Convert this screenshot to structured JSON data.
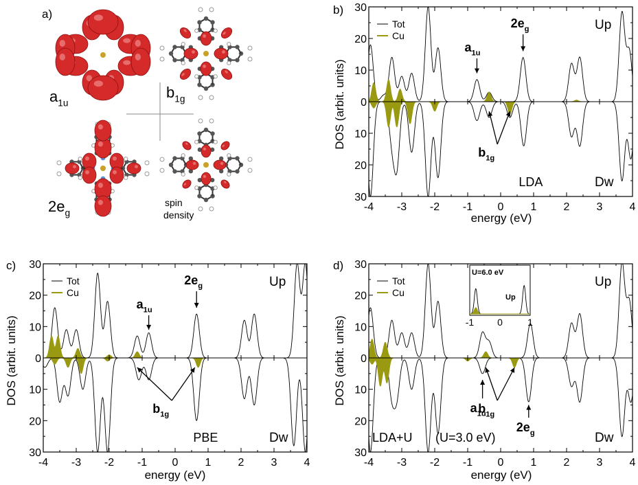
{
  "figure": {
    "panel_a": {
      "label": "a)",
      "orbitals": [
        {
          "main": "a",
          "sub": "1u"
        },
        {
          "main": "b",
          "sub": "1g"
        },
        {
          "main": "2e",
          "sub": "g"
        },
        {
          "main": "spin",
          "sub": "density"
        }
      ]
    }
  },
  "chart_data": [
    {
      "panel": "b)",
      "type": "line",
      "xlabel": "energy (eV)",
      "ylabel": "DOS (arbit. units)",
      "xlim": [
        -4,
        4
      ],
      "ylim": [
        -30,
        30
      ],
      "xticks": [
        "-4",
        "-3",
        "-2",
        "-1",
        "0",
        "1",
        "2",
        "3",
        "4"
      ],
      "yticks": [
        "30",
        "20",
        "10",
        "0",
        "10",
        "20",
        "30"
      ],
      "legend": [
        "Tot",
        "Cu"
      ],
      "text_up": "Up",
      "text_dw": "Dw",
      "method": "LDA",
      "series": [
        {
          "name": "Tot",
          "spin": "up",
          "peaks": [
            [
              -3.95,
              18
            ],
            [
              -3.55,
              2
            ],
            [
              -3.3,
              14
            ],
            [
              -3.0,
              8
            ],
            [
              -2.7,
              9
            ],
            [
              -2.2,
              30
            ],
            [
              -1.9,
              17
            ],
            [
              -0.72,
              7
            ],
            [
              -0.35,
              3
            ],
            [
              0.68,
              14
            ],
            [
              2.15,
              12
            ],
            [
              2.4,
              14
            ],
            [
              3.68,
              28
            ],
            [
              3.9,
              16
            ]
          ]
        },
        {
          "name": "Tot",
          "spin": "dw",
          "peaks": [
            [
              -3.95,
              30
            ],
            [
              -3.3,
              12
            ],
            [
              -3.15,
              20
            ],
            [
              -2.7,
              16
            ],
            [
              -2.2,
              30
            ],
            [
              -1.9,
              24
            ],
            [
              -0.72,
              6
            ],
            [
              -0.35,
              5
            ],
            [
              0.28,
              5
            ],
            [
              0.7,
              14
            ],
            [
              2.15,
              11
            ],
            [
              2.4,
              14
            ],
            [
              3.68,
              25
            ],
            [
              3.95,
              18
            ]
          ]
        },
        {
          "name": "Cu",
          "spin": "up",
          "peaks": [
            [
              -3.85,
              6
            ],
            [
              -3.4,
              7
            ],
            [
              -3.05,
              4
            ],
            [
              -0.35,
              3
            ],
            [
              2.3,
              0.5
            ]
          ]
        },
        {
          "name": "Cu",
          "spin": "dw",
          "peaks": [
            [
              -3.85,
              2
            ],
            [
              -3.4,
              8
            ],
            [
              -3.15,
              8
            ],
            [
              -2.75,
              7
            ],
            [
              -2.0,
              3
            ],
            [
              0.28,
              4
            ]
          ]
        }
      ],
      "annotations": [
        {
          "main": "a",
          "sub": "1u",
          "x": -0.72
        },
        {
          "main": "2e",
          "sub": "g",
          "x": 0.68
        },
        {
          "main": "b",
          "sub": "1g",
          "x": [
            -0.35,
            0.28
          ]
        }
      ]
    },
    {
      "panel": "c)",
      "type": "line",
      "xlabel": "energy (eV)",
      "ylabel": "DOS (arbit. units)",
      "xlim": [
        -4,
        4
      ],
      "ylim": [
        -30,
        30
      ],
      "xticks": [
        "-4",
        "-3",
        "-2",
        "-1",
        "0",
        "1",
        "2",
        "3",
        "4"
      ],
      "yticks": [
        "30",
        "20",
        "10",
        "0",
        "10",
        "20",
        "30"
      ],
      "legend": [
        "Tot",
        "Cu"
      ],
      "text_up": "Up",
      "text_dw": "Dw",
      "method": "PBE",
      "series": [
        {
          "name": "Tot",
          "spin": "up",
          "peaks": [
            [
              -3.65,
              16
            ],
            [
              -3.3,
              9
            ],
            [
              -3.0,
              9
            ],
            [
              -2.35,
              27
            ],
            [
              -2.05,
              18
            ],
            [
              -1.15,
              7
            ],
            [
              -0.8,
              8
            ],
            [
              0.65,
              14
            ],
            [
              2.1,
              12
            ],
            [
              2.4,
              14
            ],
            [
              3.7,
              30
            ],
            [
              3.95,
              30
            ]
          ]
        },
        {
          "name": "Tot",
          "spin": "dw",
          "peaks": [
            [
              -3.95,
              3
            ],
            [
              -3.5,
              14
            ],
            [
              -3.25,
              12
            ],
            [
              -2.8,
              10
            ],
            [
              -2.35,
              30
            ],
            [
              -2.05,
              30
            ],
            [
              -1.1,
              7
            ],
            [
              -0.8,
              7
            ],
            [
              0.65,
              20
            ],
            [
              2.1,
              13
            ],
            [
              2.4,
              15
            ],
            [
              3.6,
              28
            ],
            [
              3.95,
              30
            ]
          ]
        },
        {
          "name": "Cu",
          "spin": "up",
          "peaks": [
            [
              -3.75,
              7
            ],
            [
              -3.55,
              7
            ],
            [
              -2.95,
              3
            ],
            [
              -2.0,
              1
            ],
            [
              -1.15,
              2
            ]
          ]
        },
        {
          "name": "Cu",
          "spin": "dw",
          "peaks": [
            [
              -3.65,
              2
            ],
            [
              -3.25,
              3
            ],
            [
              -2.85,
              5
            ],
            [
              -2.05,
              1
            ],
            [
              0.7,
              3
            ]
          ]
        }
      ],
      "annotations": [
        {
          "main": "a",
          "sub": "1u",
          "x": -0.8
        },
        {
          "main": "2e",
          "sub": "g",
          "x": 0.65
        },
        {
          "main": "b",
          "sub": "1g",
          "x": [
            -1.15,
            0.6
          ]
        }
      ]
    },
    {
      "panel": "d)",
      "type": "line",
      "xlabel": "energy (eV)",
      "ylabel": "DOS (arbit. units)",
      "xlim": [
        -4,
        4
      ],
      "ylim": [
        -30,
        30
      ],
      "xticks": [
        "-4",
        "-3",
        "-2",
        "-1",
        "0",
        "1",
        "2",
        "3",
        "4"
      ],
      "yticks": [
        "30",
        "20",
        "10",
        "0",
        "10",
        "20",
        "30"
      ],
      "legend": [
        "Tot",
        "Cu"
      ],
      "text_up": "Up",
      "text_dw": "Dw",
      "method": "LDA+U",
      "u_value": "(U=3.0 eV)",
      "series": [
        {
          "name": "Tot",
          "spin": "up",
          "peaks": [
            [
              -3.95,
              16
            ],
            [
              -3.3,
              12
            ],
            [
              -3.0,
              8
            ],
            [
              -2.7,
              8
            ],
            [
              -2.2,
              30
            ],
            [
              -1.9,
              18
            ],
            [
              -0.55,
              8
            ],
            [
              -0.35,
              5
            ],
            [
              0.9,
              11
            ],
            [
              2.15,
              11
            ],
            [
              2.4,
              14
            ],
            [
              3.68,
              30
            ],
            [
              3.9,
              18
            ]
          ]
        },
        {
          "name": "Tot",
          "spin": "dw",
          "peaks": [
            [
              -3.95,
              30
            ],
            [
              -3.3,
              12
            ],
            [
              -3.15,
              12
            ],
            [
              -2.7,
              10
            ],
            [
              -2.2,
              30
            ],
            [
              -1.9,
              24
            ],
            [
              -0.55,
              5
            ],
            [
              0.85,
              14
            ],
            [
              2.15,
              9
            ],
            [
              2.4,
              14
            ],
            [
              3.68,
              25
            ],
            [
              3.95,
              14
            ]
          ]
        },
        {
          "name": "Cu",
          "spin": "up",
          "peaks": [
            [
              -3.9,
              6
            ],
            [
              -3.5,
              5
            ],
            [
              -0.45,
              2
            ]
          ]
        },
        {
          "name": "Cu",
          "spin": "dw",
          "peaks": [
            [
              -3.9,
              2
            ],
            [
              -3.65,
              9
            ],
            [
              -3.45,
              8
            ],
            [
              -1.0,
              1
            ],
            [
              0.42,
              3
            ]
          ]
        }
      ],
      "annotations": [
        {
          "main": "a",
          "sub": "1u",
          "x": -0.55
        },
        {
          "main": "2e",
          "sub": "g",
          "x": 0.85
        },
        {
          "main": "b",
          "sub": "1g",
          "x": [
            -0.45,
            0.42
          ]
        }
      ],
      "inset": {
        "title": "U=6.0 eV",
        "label": "Up",
        "xlim": [
          -1,
          1
        ],
        "xticks": [
          "-1",
          "0",
          "1"
        ],
        "series": [
          {
            "name": "Tot",
            "peaks": [
              [
                -0.8,
                8
              ],
              [
                0.8,
                9
              ]
            ]
          },
          {
            "name": "Cu",
            "peaks": [
              [
                -0.8,
                2
              ]
            ]
          }
        ]
      }
    }
  ],
  "colors": {
    "tot": "#000000",
    "cu": "#9a9a12",
    "orbital": "#d42a2a",
    "atom_c": "#555555",
    "atom_h": "#ffffff",
    "atom_n": "#5b8ed6"
  }
}
